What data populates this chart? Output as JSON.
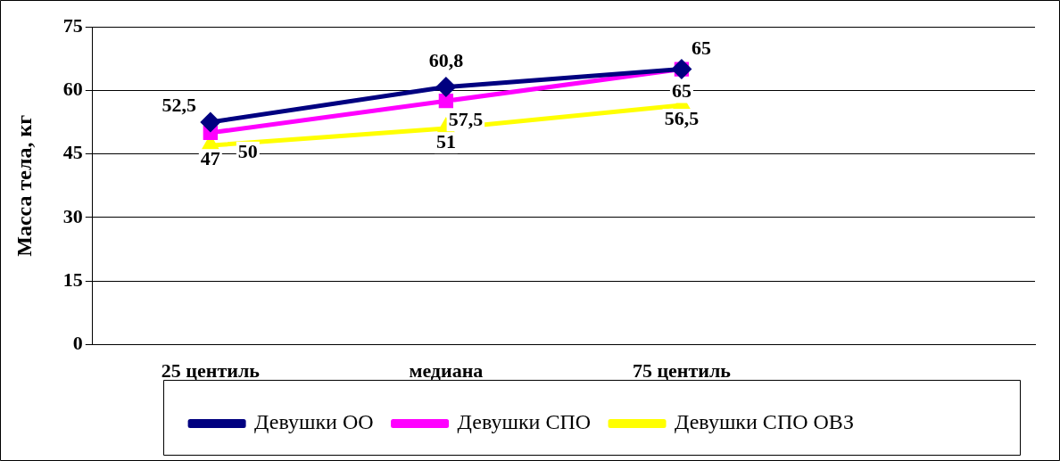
{
  "chart_data": {
    "type": "line",
    "ylabel": "Масса тела, кг",
    "categories": [
      "25 центиль",
      "медиана",
      "75 центиль",
      null
    ],
    "ylim": [
      0,
      75
    ],
    "yticks": [
      0,
      15,
      30,
      45,
      60,
      75
    ],
    "grid": "y",
    "legend": "bottom",
    "series": [
      {
        "name": "Девушки ОО",
        "color": "#000080",
        "marker": "diamond",
        "values": [
          52.5,
          60.8,
          65,
          null
        ],
        "value_labels": [
          "52,5",
          "60,8",
          "65",
          null
        ]
      },
      {
        "name": "Девушки СПО",
        "color": "#ff00ff",
        "marker": "square",
        "values": [
          50,
          57.5,
          65,
          null
        ],
        "value_labels": [
          "50",
          "57,5",
          "65",
          null
        ]
      },
      {
        "name": "Девушки СПО ОВЗ",
        "color": "#ffff00",
        "marker": "triangle",
        "values": [
          47,
          51,
          56.5,
          null
        ],
        "value_labels": [
          "47",
          "51",
          "56,5",
          null
        ]
      }
    ]
  }
}
